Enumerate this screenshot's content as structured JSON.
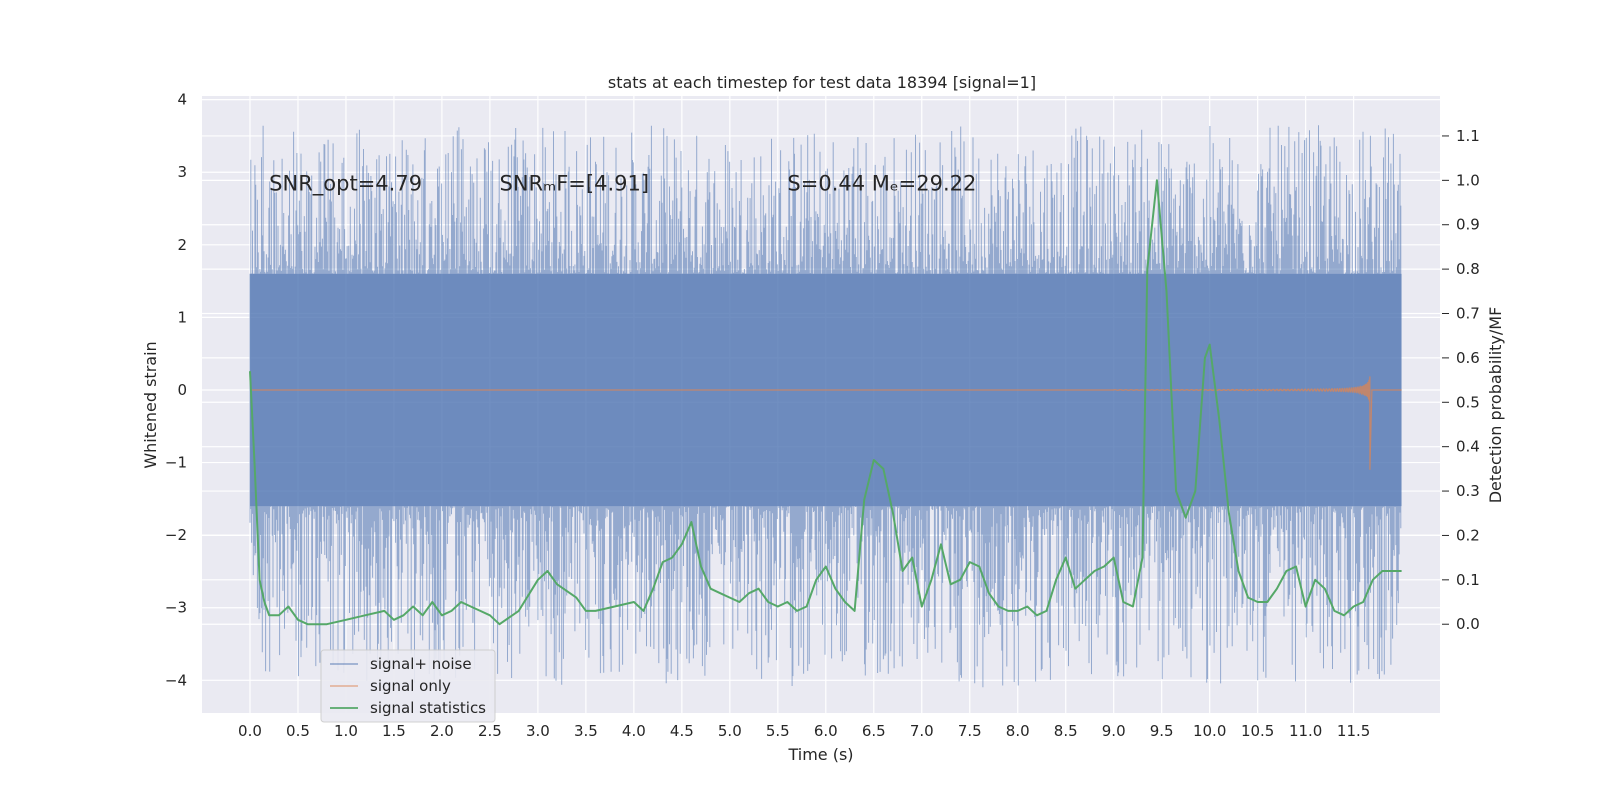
{
  "chart_data": {
    "type": "line",
    "title": "stats at each timestep for test data 18394 [signal=1]",
    "xlabel": "Time (s)",
    "ylabel": "Whitened strain",
    "y2label": "Detection probability/MF",
    "xlim": [
      -0.5,
      12.4
    ],
    "ylim": [
      -4.45,
      4.05
    ],
    "y2lim": [
      -0.2,
      1.19
    ],
    "xticks": [
      0.0,
      0.5,
      1.0,
      1.5,
      2.0,
      2.5,
      3.0,
      3.5,
      4.0,
      4.5,
      5.0,
      5.5,
      6.0,
      6.5,
      7.0,
      7.5,
      8.0,
      8.5,
      9.0,
      9.5,
      10.0,
      10.5,
      11.0,
      11.5
    ],
    "xtick_labels": [
      "0.0",
      "0.5",
      "1.0",
      "1.5",
      "2.0",
      "2.5",
      "3.0",
      "3.5",
      "4.0",
      "4.5",
      "5.0",
      "5.5",
      "6.0",
      "6.5",
      "7.0",
      "7.5",
      "8.0",
      "8.5",
      "9.0",
      "9.5",
      "10.0",
      "10.5",
      "11.0",
      "11.5"
    ],
    "yticks": [
      -4,
      -3,
      -2,
      -1,
      0,
      1,
      2,
      3,
      4
    ],
    "ytick_labels": [
      "−4",
      "−3",
      "−2",
      "−1",
      "0",
      "1",
      "2",
      "3",
      "4"
    ],
    "y2ticks": [
      0.0,
      0.1,
      0.2,
      0.3,
      0.4,
      0.5,
      0.6,
      0.7,
      0.8,
      0.9,
      1.0,
      1.1
    ],
    "y2tick_labels": [
      "0.0",
      "0.1",
      "0.2",
      "0.3",
      "0.4",
      "0.5",
      "0.6",
      "0.7",
      "0.8",
      "0.9",
      "1.0",
      "1.1"
    ],
    "annotations": [
      {
        "x": 0.2,
        "y": 2.75,
        "text": "SNR_opt=4.79"
      },
      {
        "x": 2.6,
        "y": 2.75,
        "text": "SNRₘF=[4.91]"
      },
      {
        "x": 5.6,
        "y": 2.75,
        "text": "S=0.44   Mₑ=29.22"
      }
    ],
    "series": [
      {
        "name": "signal+ noise",
        "kind": "noise-band",
        "color": "#4c72b0",
        "x_range": [
          0.0,
          12.0
        ],
        "typical_envelope": [
          -1.6,
          1.6
        ],
        "max": 3.65,
        "min": -4.1
      },
      {
        "name": "signal only",
        "kind": "chirp",
        "color": "#dd8452",
        "x_range": [
          0.0,
          11.67
        ],
        "oscillation_onset": 9.0,
        "peak_amplitude": 1.05
      },
      {
        "name": "signal statistics",
        "kind": "line",
        "axis": "right",
        "color": "#55a868",
        "x": [
          0.0,
          0.05,
          0.1,
          0.15,
          0.2,
          0.3,
          0.4,
          0.5,
          0.6,
          0.8,
          1.0,
          1.2,
          1.4,
          1.5,
          1.6,
          1.7,
          1.8,
          1.9,
          2.0,
          2.1,
          2.2,
          2.3,
          2.4,
          2.5,
          2.6,
          2.8,
          3.0,
          3.1,
          3.2,
          3.4,
          3.5,
          3.6,
          3.8,
          4.0,
          4.1,
          4.2,
          4.3,
          4.4,
          4.5,
          4.6,
          4.7,
          4.8,
          4.9,
          5.0,
          5.1,
          5.2,
          5.3,
          5.4,
          5.5,
          5.6,
          5.7,
          5.8,
          5.9,
          6.0,
          6.1,
          6.2,
          6.3,
          6.4,
          6.5,
          6.6,
          6.7,
          6.8,
          6.9,
          7.0,
          7.1,
          7.2,
          7.3,
          7.4,
          7.5,
          7.6,
          7.7,
          7.8,
          7.9,
          8.0,
          8.1,
          8.2,
          8.3,
          8.4,
          8.5,
          8.6,
          8.7,
          8.8,
          8.9,
          9.0,
          9.1,
          9.2,
          9.3,
          9.35,
          9.45,
          9.55,
          9.65,
          9.75,
          9.85,
          9.95,
          10.0,
          10.1,
          10.2,
          10.3,
          10.4,
          10.5,
          10.6,
          10.7,
          10.8,
          10.9,
          11.0,
          11.1,
          11.2,
          11.3,
          11.4,
          11.5,
          11.6,
          11.7,
          11.8,
          11.9,
          12.0
        ],
        "values": [
          0.57,
          0.35,
          0.1,
          0.05,
          0.02,
          0.02,
          0.04,
          0.01,
          0.0,
          0.0,
          0.01,
          0.02,
          0.03,
          0.01,
          0.02,
          0.04,
          0.02,
          0.05,
          0.02,
          0.03,
          0.05,
          0.04,
          0.03,
          0.02,
          0.0,
          0.03,
          0.1,
          0.12,
          0.09,
          0.06,
          0.03,
          0.03,
          0.04,
          0.05,
          0.03,
          0.08,
          0.14,
          0.15,
          0.18,
          0.23,
          0.13,
          0.08,
          0.07,
          0.06,
          0.05,
          0.07,
          0.08,
          0.05,
          0.04,
          0.05,
          0.03,
          0.04,
          0.1,
          0.13,
          0.08,
          0.05,
          0.03,
          0.28,
          0.37,
          0.35,
          0.25,
          0.12,
          0.15,
          0.04,
          0.1,
          0.18,
          0.09,
          0.1,
          0.14,
          0.13,
          0.07,
          0.04,
          0.03,
          0.03,
          0.04,
          0.02,
          0.03,
          0.1,
          0.15,
          0.08,
          0.1,
          0.12,
          0.13,
          0.15,
          0.05,
          0.04,
          0.15,
          0.8,
          1.0,
          0.75,
          0.3,
          0.24,
          0.3,
          0.6,
          0.63,
          0.46,
          0.25,
          0.12,
          0.06,
          0.05,
          0.05,
          0.08,
          0.12,
          0.13,
          0.04,
          0.1,
          0.08,
          0.03,
          0.02,
          0.04,
          0.05,
          0.1,
          0.12,
          0.12,
          0.12
        ]
      }
    ],
    "legend": {
      "placement": "lower-left",
      "entries": [
        "signal+ noise",
        "signal only",
        "signal statistics"
      ]
    },
    "grid": true
  }
}
